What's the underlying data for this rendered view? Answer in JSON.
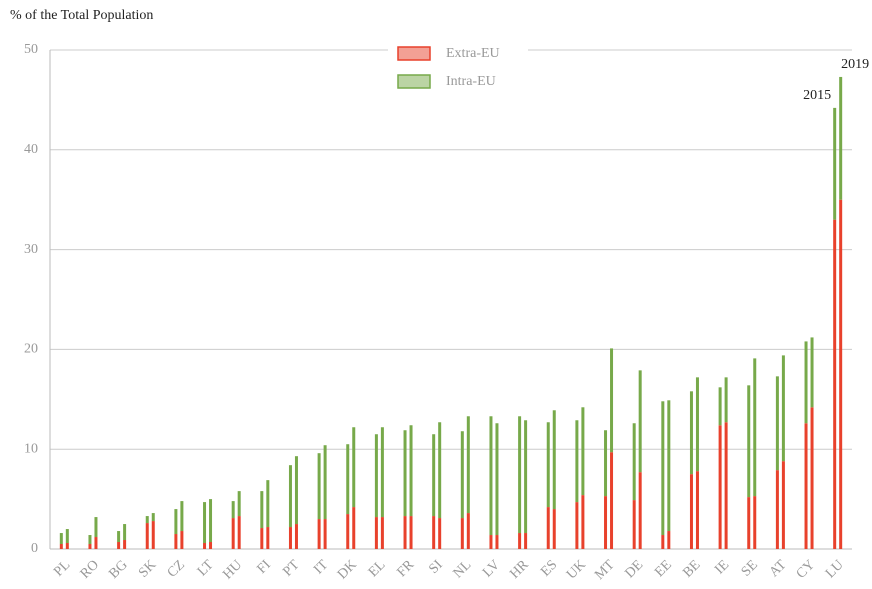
{
  "chart_data": {
    "type": "paired-stacked-bar",
    "y_label": "% of the Total Population",
    "categories": [
      "PL",
      "RO",
      "BG",
      "SK",
      "CZ",
      "LT",
      "HU",
      "FI",
      "PT",
      "IT",
      "DK",
      "EL",
      "FR",
      "SI",
      "NL",
      "LV",
      "HR",
      "ES",
      "UK",
      "MT",
      "DE",
      "EE",
      "BE",
      "IE",
      "SE",
      "AT",
      "CY",
      "LU"
    ],
    "annotations": [
      "2015",
      "2019"
    ],
    "series": [
      {
        "name": "Extra-EU",
        "color": "#e8412c",
        "values_2015": [
          0.5,
          0.5,
          0.7,
          2.6,
          1.5,
          0.6,
          3.1,
          2.1,
          2.2,
          3.0,
          3.5,
          3.2,
          3.3,
          3.3,
          3.1,
          1.4,
          1.6,
          4.2,
          4.7,
          5.3,
          4.9,
          1.4,
          7.5,
          12.4,
          5.2,
          7.9,
          12.6,
          33.0
        ],
        "values_2019": [
          0.6,
          1.2,
          0.9,
          2.8,
          1.8,
          0.7,
          3.3,
          2.2,
          2.5,
          3.0,
          4.2,
          3.2,
          3.3,
          3.1,
          3.6,
          1.4,
          1.6,
          4.0,
          5.4,
          9.7,
          7.7,
          1.8,
          7.8,
          12.7,
          5.3,
          8.8,
          14.2,
          35.0
        ]
      },
      {
        "name": "Intra-EU",
        "color": "#77a94a",
        "values_2015": [
          1.1,
          0.9,
          1.1,
          0.7,
          2.5,
          4.1,
          1.7,
          3.7,
          6.2,
          6.6,
          7.0,
          8.3,
          8.6,
          8.2,
          8.7,
          11.9,
          11.7,
          8.5,
          8.2,
          6.6,
          7.7,
          13.4,
          8.3,
          3.8,
          11.2,
          9.4,
          8.2,
          11.2
        ],
        "values_2019": [
          1.4,
          2.0,
          1.6,
          0.8,
          3.0,
          4.3,
          2.5,
          4.7,
          6.8,
          7.4,
          8.0,
          9.0,
          9.1,
          9.6,
          9.7,
          11.2,
          11.3,
          9.9,
          8.8,
          10.4,
          10.2,
          13.1,
          9.4,
          4.5,
          13.8,
          10.6,
          7.0,
          12.3
        ]
      }
    ],
    "ylim": [
      0,
      50
    ],
    "yticks": [
      0,
      10,
      20,
      30,
      40,
      50
    ],
    "grid": true
  }
}
